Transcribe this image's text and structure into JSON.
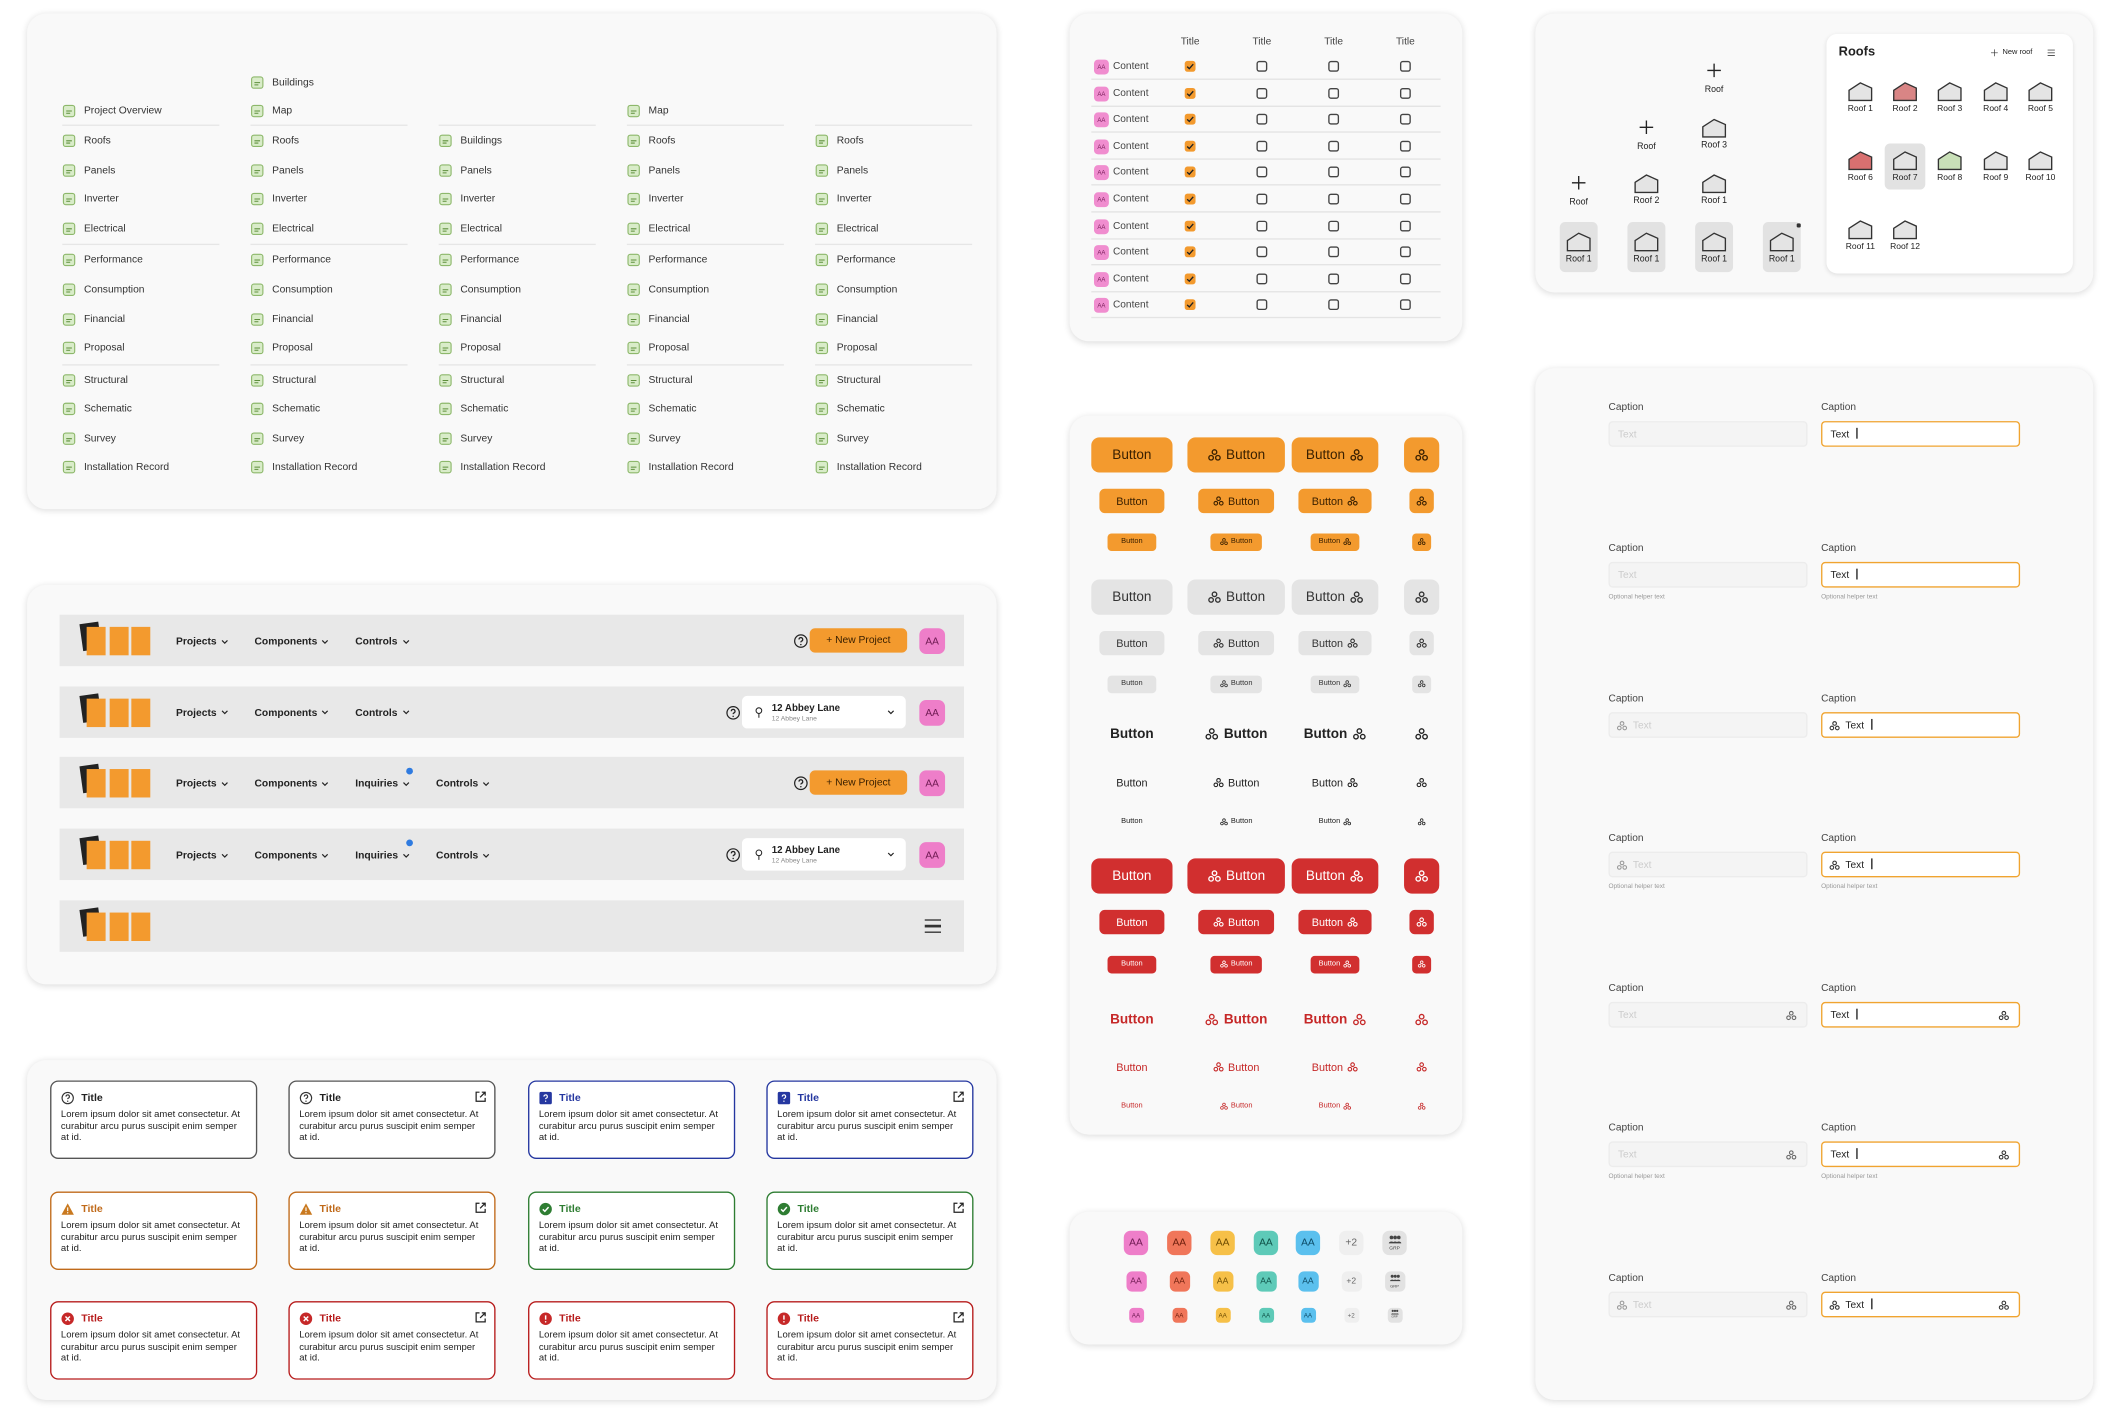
{
  "sidebar": {
    "columns": [
      [
        "Project Overview",
        "Roofs",
        "Panels",
        "Inverter",
        "Electrical",
        "Performance",
        "Consumption",
        "Financial",
        "Proposal",
        "Structural",
        "Schematic",
        "Survey",
        "Installation Record"
      ],
      [
        "Buildings",
        "Map",
        "Roofs",
        "Panels",
        "Inverter",
        "Electrical",
        "Performance",
        "Consumption",
        "Financial",
        "Proposal",
        "Structural",
        "Schematic",
        "Survey",
        "Installation Record"
      ],
      [
        "Buildings",
        "Panels",
        "Inverter",
        "Electrical",
        "Performance",
        "Consumption",
        "Financial",
        "Proposal",
        "Structural",
        "Schematic",
        "Survey",
        "Installation Record"
      ],
      [
        "Map",
        "Roofs",
        "Panels",
        "Inverter",
        "Electrical",
        "Performance",
        "Consumption",
        "Financial",
        "Proposal",
        "Structural",
        "Schematic",
        "Survey",
        "Installation Record"
      ],
      [
        "Roofs",
        "Panels",
        "Inverter",
        "Electrical",
        "Performance",
        "Consumption",
        "Financial",
        "Proposal",
        "Structural",
        "Schematic",
        "Survey",
        "Installation Record"
      ]
    ]
  },
  "table": {
    "headers": [
      "Title",
      "Title",
      "Title",
      "Title"
    ],
    "rows": [
      {
        "avatar": "AA",
        "label": "Content",
        "checked": [
          true,
          false,
          false,
          false
        ]
      },
      {
        "avatar": "AA",
        "label": "Content",
        "checked": [
          true,
          false,
          false,
          false
        ]
      },
      {
        "avatar": "AA",
        "label": "Content",
        "checked": [
          true,
          false,
          false,
          false
        ]
      },
      {
        "avatar": "AA",
        "label": "Content",
        "checked": [
          true,
          false,
          false,
          false
        ]
      },
      {
        "avatar": "AA",
        "label": "Content",
        "checked": [
          true,
          false,
          false,
          false
        ]
      },
      {
        "avatar": "AA",
        "label": "Content",
        "checked": [
          true,
          false,
          false,
          false
        ]
      },
      {
        "avatar": "AA",
        "label": "Content",
        "checked": [
          true,
          false,
          false,
          false
        ]
      },
      {
        "avatar": "AA",
        "label": "Content",
        "checked": [
          true,
          false,
          false,
          false
        ]
      },
      {
        "avatar": "AA",
        "label": "Content",
        "checked": [
          true,
          false,
          false,
          false
        ]
      },
      {
        "avatar": "AA",
        "label": "Content",
        "checked": [
          true,
          false,
          false,
          false
        ]
      }
    ]
  },
  "roof_stacks": [
    {
      "add": "Roof",
      "tiles": [
        "Roof 1"
      ]
    },
    {
      "add": "Roof",
      "tiles": [
        "Roof 2",
        "Roof 1"
      ]
    },
    {
      "add": "Roof",
      "tiles": [
        "Roof 3",
        "Roof 1",
        "Roof 1"
      ]
    },
    {
      "tiles": [
        "Roof 1"
      ]
    }
  ],
  "roofs_card": {
    "title": "Roofs",
    "action": "New roof",
    "items": [
      "Roof 1",
      "Roof 2",
      "Roof 3",
      "Roof 4",
      "Roof 5",
      "Roof 6",
      "Roof 7",
      "Roof 8",
      "Roof 9",
      "Roof 10",
      "Roof 11",
      "Roof 12"
    ]
  },
  "header_bars": [
    {
      "nav": [
        "Projects",
        "Components",
        "Controls"
      ],
      "button": "+ New Project",
      "avatar": "AA"
    },
    {
      "nav": [
        "Projects",
        "Components",
        "Controls"
      ],
      "address": {
        "title": "12 Abbey Lane",
        "subtitle": "12 Abbey Lane"
      },
      "avatar": "AA"
    },
    {
      "nav": [
        "Projects",
        "Components",
        {
          "label": "Inquiries",
          "badge": true
        },
        "Controls"
      ],
      "button": "+ New Project",
      "avatar": "AA"
    },
    {
      "nav": [
        "Projects",
        "Components",
        {
          "label": "Inquiries",
          "badge": true
        },
        "Controls"
      ],
      "address": {
        "title": "12 Abbey Lane",
        "subtitle": "12 Abbey Lane"
      },
      "avatar": "AA"
    }
  ],
  "buttons": {
    "label": "Button"
  },
  "avatars": {
    "labels": [
      "AA",
      "AA",
      "AA",
      "AA",
      "AA"
    ],
    "overflow": "+2",
    "group": "GRP"
  },
  "fields": {
    "caption": "Caption",
    "placeholder": "Text",
    "helper": "Optional helper text"
  },
  "alerts": {
    "title": "Title",
    "body": "Lorem ipsum dolor sit amet consectetur. At curabitur arcu purus suscipit enim semper at id."
  }
}
